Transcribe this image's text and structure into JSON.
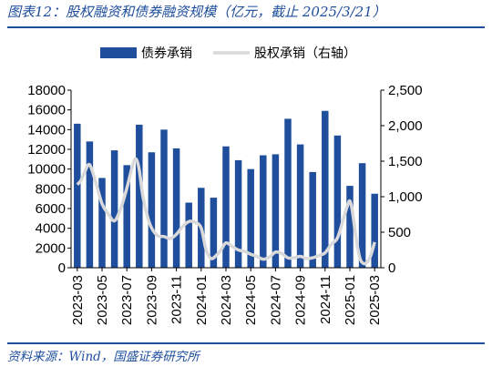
{
  "title": "图表12：股权融资和债券融资规模（亿元，截止 2025/3/21）",
  "source": "资料来源：Wind，国盛证券研究所",
  "colors": {
    "bar": "#1f4e9c",
    "line": "#d9d9d9",
    "accent": "#1f4e9c"
  },
  "chart_data": {
    "type": "bar",
    "legend_position": "top-center",
    "grid": false,
    "x_ticks": [
      "2023-03",
      "2023-05",
      "2023-07",
      "2023-09",
      "2023-11",
      "2024-01",
      "2024-03",
      "2024-05",
      "2024-07",
      "2024-09",
      "2024-11",
      "2025-01",
      "2025-03"
    ],
    "categories": [
      "2023-03",
      "2023-04",
      "2023-05",
      "2023-06",
      "2023-07",
      "2023-08",
      "2023-09",
      "2023-10",
      "2023-11",
      "2023-12",
      "2024-01",
      "2024-02",
      "2024-03",
      "2024-04",
      "2024-05",
      "2024-06",
      "2024-07",
      "2024-08",
      "2024-09",
      "2024-10",
      "2024-11",
      "2024-12",
      "2025-01",
      "2025-02",
      "2025-03"
    ],
    "left_axis": {
      "ylim": [
        0,
        18000
      ],
      "ticks": [
        "0",
        "2000",
        "4000",
        "6000",
        "8000",
        "10000",
        "12000",
        "14000",
        "16000",
        "18000"
      ]
    },
    "right_axis": {
      "ylim": [
        0,
        2500
      ],
      "ticks": [
        "0",
        "500",
        "1,000",
        "1,500",
        "2,000",
        "2,500"
      ]
    },
    "series": [
      {
        "name": "债券承销",
        "type": "bar",
        "axis": "left",
        "values": [
          14600,
          12800,
          9100,
          11900,
          10400,
          14500,
          11700,
          14000,
          12100,
          6600,
          8100,
          7100,
          12300,
          10900,
          10000,
          11400,
          11500,
          15100,
          12500,
          9700,
          15900,
          13400,
          8300,
          10600,
          7500
        ]
      },
      {
        "name": "股权承销（右轴）",
        "type": "line",
        "axis": "right",
        "points": [
          {
            "x": 0.0,
            "y": 1170
          },
          {
            "x": 0.3,
            "y": 1230
          },
          {
            "x": 0.6,
            "y": 1350
          },
          {
            "x": 1.0,
            "y": 1450
          },
          {
            "x": 1.5,
            "y": 1200
          },
          {
            "x": 2.0,
            "y": 900
          },
          {
            "x": 2.5,
            "y": 760
          },
          {
            "x": 3.0,
            "y": 660
          },
          {
            "x": 3.5,
            "y": 830
          },
          {
            "x": 4.0,
            "y": 1120
          },
          {
            "x": 4.5,
            "y": 1460
          },
          {
            "x": 4.75,
            "y": 1530
          },
          {
            "x": 5.0,
            "y": 1380
          },
          {
            "x": 5.3,
            "y": 1000
          },
          {
            "x": 5.7,
            "y": 700
          },
          {
            "x": 6.0,
            "y": 560
          },
          {
            "x": 6.5,
            "y": 450
          },
          {
            "x": 7.0,
            "y": 440
          },
          {
            "x": 7.5,
            "y": 410
          },
          {
            "x": 8.0,
            "y": 470
          },
          {
            "x": 8.5,
            "y": 580
          },
          {
            "x": 9.0,
            "y": 650
          },
          {
            "x": 9.5,
            "y": 640
          },
          {
            "x": 10.0,
            "y": 560
          },
          {
            "x": 10.4,
            "y": 250
          },
          {
            "x": 10.8,
            "y": 130
          },
          {
            "x": 11.2,
            "y": 170
          },
          {
            "x": 11.6,
            "y": 250
          },
          {
            "x": 12.0,
            "y": 350
          },
          {
            "x": 12.5,
            "y": 300
          },
          {
            "x": 13.0,
            "y": 250
          },
          {
            "x": 13.5,
            "y": 230
          },
          {
            "x": 14.0,
            "y": 190
          },
          {
            "x": 14.5,
            "y": 160
          },
          {
            "x": 15.0,
            "y": 120
          },
          {
            "x": 15.5,
            "y": 150
          },
          {
            "x": 16.0,
            "y": 220
          },
          {
            "x": 16.5,
            "y": 200
          },
          {
            "x": 17.0,
            "y": 140
          },
          {
            "x": 17.5,
            "y": 140
          },
          {
            "x": 18.0,
            "y": 160
          },
          {
            "x": 18.5,
            "y": 130
          },
          {
            "x": 19.0,
            "y": 140
          },
          {
            "x": 19.5,
            "y": 170
          },
          {
            "x": 20.0,
            "y": 210
          },
          {
            "x": 20.5,
            "y": 330
          },
          {
            "x": 21.0,
            "y": 420
          },
          {
            "x": 21.5,
            "y": 700
          },
          {
            "x": 21.8,
            "y": 870
          },
          {
            "x": 22.0,
            "y": 940
          },
          {
            "x": 22.2,
            "y": 800
          },
          {
            "x": 22.5,
            "y": 420
          },
          {
            "x": 22.8,
            "y": 140
          },
          {
            "x": 23.1,
            "y": 60
          },
          {
            "x": 23.4,
            "y": 80
          },
          {
            "x": 23.7,
            "y": 180
          },
          {
            "x": 24.0,
            "y": 360
          }
        ]
      }
    ]
  }
}
